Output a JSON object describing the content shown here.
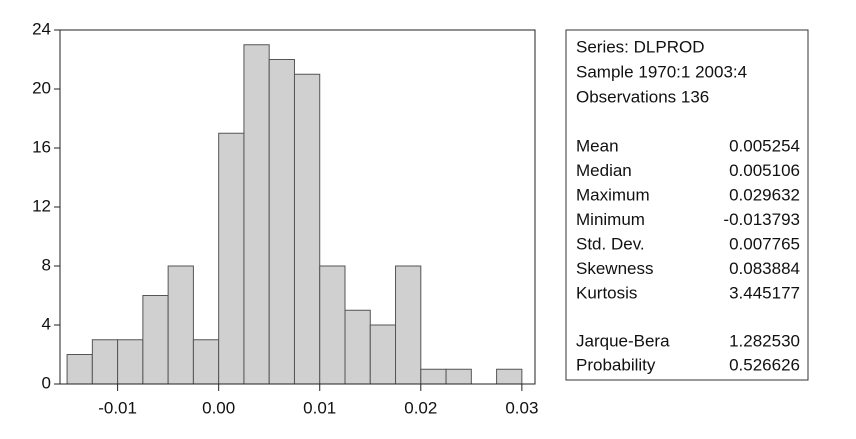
{
  "chart_data": {
    "type": "histogram",
    "bins": [
      -0.015,
      -0.0125,
      -0.01,
      -0.0075,
      -0.005,
      -0.0025,
      0,
      0.0025,
      0.005,
      0.0075,
      0.01,
      0.0125,
      0.015,
      0.0175,
      0.02,
      0.0225,
      0.025,
      0.0275,
      0.03
    ],
    "values": [
      2,
      3,
      3,
      6,
      8,
      3,
      17,
      23,
      22,
      21,
      8,
      5,
      4,
      8,
      1,
      1,
      0,
      1
    ],
    "color": "#d0d0d0",
    "xlim": [
      -0.0157,
      0.0313
    ],
    "xticks": [
      -0.01,
      {
        "value": 0,
        "label": "0.00"
      },
      0.01,
      0.02,
      0.03
    ],
    "ylim": [
      0,
      24
    ],
    "yticks": [
      0,
      4,
      8,
      12,
      16,
      20,
      24
    ],
    "info": [
      "Series: DLPROD",
      "Sample 1970:1 2003:4",
      "Observations 136"
    ],
    "stats": [
      [
        "Mean",
        "0.005254"
      ],
      [
        "Median",
        "0.005106"
      ],
      [
        "Maximum",
        "0.029632"
      ],
      [
        "Minimum",
        "-0.013793"
      ],
      [
        "Std. Dev.",
        "0.007765"
      ],
      [
        "Skewness",
        "0.083884"
      ],
      [
        "Kurtosis",
        "3.445177"
      ]
    ],
    "tests": [
      [
        "Jarque-Bera",
        "1.282530"
      ],
      [
        "Probability",
        "0.526626"
      ]
    ]
  }
}
